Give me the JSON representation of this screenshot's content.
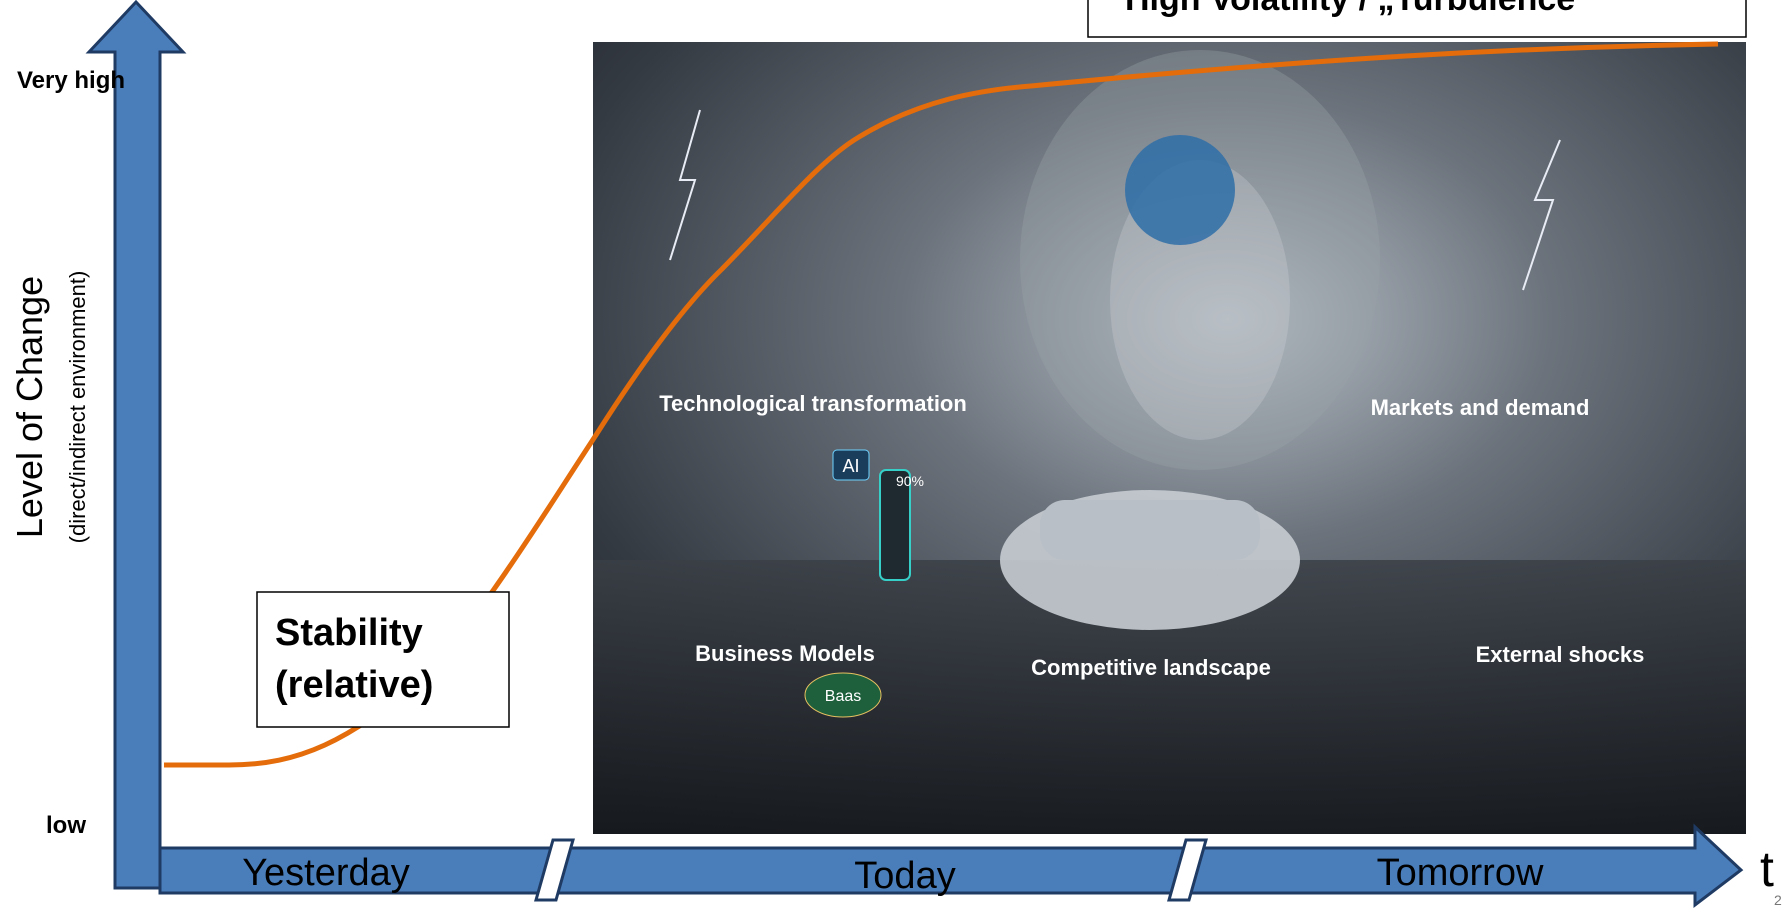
{
  "header": {
    "title": "High Volatility / „Turbulence“"
  },
  "y_axis": {
    "high_label": "Very high",
    "low_label": "low",
    "title": "Level of Change",
    "subtitle": "(direct/indirect environment)"
  },
  "x_axis": {
    "segments": [
      "Yesterday",
      "Today",
      "Tomorrow"
    ],
    "symbol": "t"
  },
  "callout": {
    "text": "Stability (relative)"
  },
  "image": {
    "labels": [
      "Technological transformation",
      "Markets and demand",
      "Business Models",
      "Competitive landscape",
      "External shocks"
    ],
    "badges": [
      "AI",
      "90%",
      "Baas"
    ]
  },
  "page_number": "2"
}
